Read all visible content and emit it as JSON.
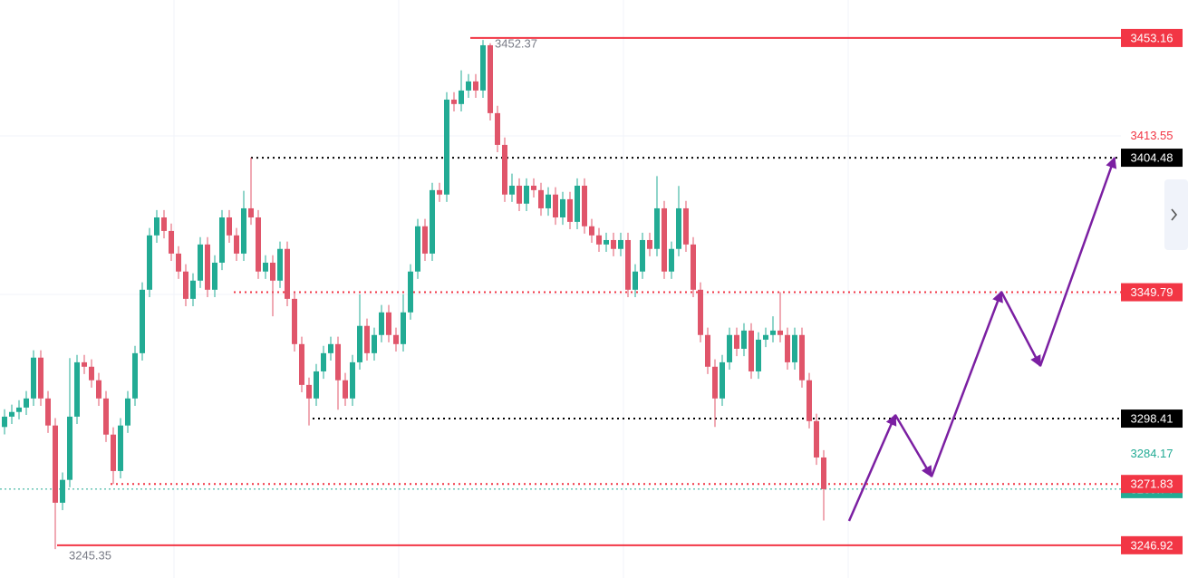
{
  "chart_data": {
    "type": "candlestick",
    "up_color": "#22ab94",
    "down_color": "#e0556a",
    "ylim": [
      3233.6,
      3468.6
    ],
    "open": [
      3295.0,
      3299.2,
      3301.1,
      3302.9,
      3306.6,
      3323.2,
      3306.6,
      3295.6,
      3264.2,
      3273.5,
      3299.2,
      3321.3,
      3319.5,
      3314.0,
      3306.6,
      3291.9,
      3277.1,
      3295.6,
      3306.6,
      3325.0,
      3350.8,
      3372.9,
      3380.2,
      3374.7,
      3365.5,
      3358.2,
      3347.1,
      3354.5,
      3369.2,
      3350.8,
      3361.8,
      3380.2,
      3372.9,
      3365.5,
      3383.9,
      3380.2,
      3358.2,
      3361.8,
      3354.5,
      3367.4,
      3347.1,
      3328.7,
      3312.1,
      3306.6,
      3317.6,
      3325.0,
      3328.7,
      3314.0,
      3306.6,
      3321.3,
      3336.1,
      3325.0,
      3332.4,
      3341.6,
      3332.4,
      3328.7,
      3341.6,
      3358.2,
      3376.6,
      3365.5,
      3391.3,
      3389.5,
      3428.1,
      3426.3,
      3431.8,
      3435.5,
      3431.8,
      3450.2,
      3422.6,
      3409.7,
      3389.5,
      3393.1,
      3385.8,
      3393.1,
      3391.3,
      3383.9,
      3389.5,
      3380.2,
      3387.6,
      3378.4,
      3393.1,
      3376.6,
      3372.9,
      3369.2,
      3371.0,
      3367.4,
      3371.0,
      3350.8,
      3358.2,
      3371.0,
      3367.4,
      3383.9,
      3358.2,
      3367.4,
      3383.9,
      3369.2,
      3350.8,
      3332.4,
      3319.5,
      3306.6,
      3321.3,
      3332.4,
      3326.8,
      3334.2,
      3317.6,
      3330.5,
      3332.4,
      3334.2,
      3332.4,
      3321.3,
      3332.4,
      3314.0,
      3297.4,
      3282.6
    ],
    "high": [
      3302.2,
      3304.1,
      3305.9,
      3309.6,
      3326.2,
      3326.2,
      3309.6,
      3298.6,
      3276.5,
      3323.0,
      3324.3,
      3324.3,
      3322.5,
      3317.0,
      3309.6,
      3294.9,
      3298.6,
      3309.6,
      3328.0,
      3353.8,
      3375.9,
      3383.2,
      3383.2,
      3377.7,
      3368.5,
      3361.2,
      3357.5,
      3372.2,
      3372.2,
      3364.8,
      3383.2,
      3383.2,
      3375.9,
      3391.0,
      3404.5,
      3383.2,
      3364.8,
      3364.8,
      3370.4,
      3370.4,
      3350.1,
      3331.7,
      3315.1,
      3320.6,
      3328.0,
      3331.7,
      3331.7,
      3317.0,
      3324.3,
      3349.0,
      3339.1,
      3335.4,
      3344.6,
      3344.6,
      3335.4,
      3349.0,
      3361.2,
      3379.6,
      3379.6,
      3394.3,
      3394.3,
      3431.1,
      3431.1,
      3440.0,
      3438.5,
      3438.5,
      3452.37,
      3451.0,
      3425.6,
      3412.7,
      3398.0,
      3396.1,
      3396.1,
      3396.1,
      3394.3,
      3392.5,
      3392.5,
      3390.6,
      3390.6,
      3396.1,
      3396.1,
      3379.6,
      3375.9,
      3374.0,
      3374.0,
      3374.0,
      3374.0,
      3361.2,
      3374.0,
      3374.0,
      3397.0,
      3386.9,
      3370.4,
      3393.0,
      3386.9,
      3372.2,
      3353.8,
      3335.4,
      3322.5,
      3324.3,
      3335.4,
      3335.4,
      3337.2,
      3337.2,
      3333.5,
      3335.4,
      3340.0,
      3349.8,
      3335.4,
      3335.4,
      3335.4,
      3317.0,
      3300.4,
      3285.6
    ],
    "low": [
      3292.0,
      3296.2,
      3298.1,
      3299.9,
      3303.6,
      3303.6,
      3292.6,
      3245.35,
      3261.2,
      3270.5,
      3296.2,
      3316.5,
      3311.0,
      3303.6,
      3288.9,
      3271.8,
      3274.1,
      3292.6,
      3303.6,
      3322.0,
      3347.8,
      3369.9,
      3371.7,
      3362.5,
      3355.2,
      3344.1,
      3344.1,
      3351.5,
      3347.8,
      3347.8,
      3358.8,
      3369.9,
      3362.5,
      3362.5,
      3377.2,
      3355.2,
      3355.2,
      3340.0,
      3351.5,
      3344.1,
      3325.7,
      3309.1,
      3295.6,
      3303.6,
      3314.6,
      3322.0,
      3302.0,
      3303.6,
      3303.6,
      3318.3,
      3322.0,
      3322.0,
      3329.4,
      3329.4,
      3325.7,
      3325.7,
      3338.6,
      3355.2,
      3362.5,
      3362.5,
      3386.5,
      3386.5,
      3423.3,
      3423.3,
      3428.8,
      3428.8,
      3428.8,
      3419.6,
      3406.7,
      3386.5,
      3386.5,
      3382.8,
      3382.8,
      3388.3,
      3380.9,
      3380.9,
      3377.2,
      3377.2,
      3375.4,
      3375.4,
      3373.6,
      3369.9,
      3366.2,
      3366.2,
      3364.4,
      3364.4,
      3347.8,
      3347.8,
      3355.2,
      3364.4,
      3364.4,
      3355.2,
      3355.2,
      3364.4,
      3366.2,
      3347.8,
      3329.4,
      3316.5,
      3295.0,
      3303.6,
      3318.3,
      3323.8,
      3323.8,
      3314.6,
      3314.6,
      3327.5,
      3329.4,
      3329.4,
      3318.3,
      3318.3,
      3311.0,
      3294.4,
      3279.6,
      3257.0
    ],
    "close": [
      3299.2,
      3301.1,
      3302.9,
      3306.6,
      3323.2,
      3306.6,
      3295.6,
      3264.2,
      3273.5,
      3299.2,
      3321.3,
      3319.5,
      3314.0,
      3306.6,
      3291.9,
      3277.1,
      3295.6,
      3306.6,
      3325.0,
      3350.8,
      3372.9,
      3380.2,
      3374.7,
      3365.5,
      3358.2,
      3347.1,
      3354.5,
      3369.2,
      3350.8,
      3361.8,
      3380.2,
      3372.9,
      3365.5,
      3383.9,
      3380.2,
      3358.2,
      3361.8,
      3354.5,
      3367.4,
      3347.1,
      3328.7,
      3312.1,
      3306.6,
      3317.6,
      3325.0,
      3328.7,
      3314.0,
      3306.6,
      3321.3,
      3336.1,
      3325.0,
      3332.4,
      3341.6,
      3332.4,
      3328.7,
      3341.6,
      3358.2,
      3376.6,
      3365.5,
      3391.3,
      3389.5,
      3428.1,
      3426.3,
      3431.8,
      3435.5,
      3431.8,
      3450.2,
      3422.6,
      3409.7,
      3389.5,
      3393.1,
      3385.8,
      3393.1,
      3391.3,
      3383.9,
      3389.5,
      3380.2,
      3387.6,
      3378.4,
      3393.1,
      3376.6,
      3372.9,
      3369.2,
      3371.0,
      3367.4,
      3371.0,
      3350.8,
      3358.2,
      3371.0,
      3367.4,
      3383.9,
      3358.2,
      3367.4,
      3383.9,
      3369.2,
      3350.8,
      3332.4,
      3319.5,
      3306.6,
      3321.3,
      3332.4,
      3326.8,
      3334.2,
      3317.6,
      3330.5,
      3332.4,
      3334.2,
      3332.4,
      3321.3,
      3332.4,
      3314.0,
      3297.4,
      3282.6,
      3269.74
    ],
    "levels": [
      {
        "value": 3453.16,
        "color": "#f23645",
        "line": "solid",
        "boxed": true
      },
      {
        "value": 3413.55,
        "color": "#f23645",
        "line": "none",
        "boxed": false
      },
      {
        "value": 3404.48,
        "color": "#000000",
        "line": "dotted",
        "boxed": true
      },
      {
        "value": 3349.79,
        "color": "#f23645",
        "line": "dotted",
        "boxed": true
      },
      {
        "value": 3298.41,
        "color": "#000000",
        "line": "dotted",
        "boxed": true
      },
      {
        "value": 3284.17,
        "color": "#22ab94",
        "line": "none",
        "boxed": false
      },
      {
        "value": 3271.83,
        "color": "#f23645",
        "line": "dotted",
        "boxed": true
      },
      {
        "value": 3246.92,
        "color": "#f23645",
        "line": "solid",
        "boxed": true
      }
    ]
  }
}
